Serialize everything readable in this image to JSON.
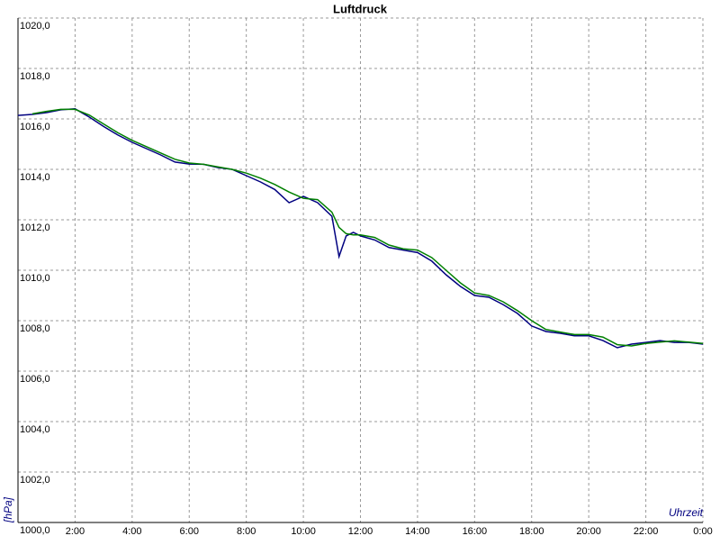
{
  "chart_data": {
    "type": "line",
    "title": "Luftdruck",
    "x_label": "Uhrzeit",
    "y_label": "[hPa]",
    "x": [
      0,
      0.5,
      1,
      1.5,
      2,
      2.5,
      3,
      3.5,
      4,
      4.5,
      5,
      5.5,
      6,
      6.5,
      7,
      7.5,
      8,
      8.5,
      9,
      9.5,
      10,
      10.5,
      11,
      11.25,
      11.5,
      11.75,
      12,
      12.5,
      13,
      13.5,
      14,
      14.5,
      15,
      15.5,
      16,
      16.5,
      17,
      17.5,
      18,
      18.5,
      19,
      19.5,
      20,
      20.5,
      21,
      21.5,
      22,
      22.5,
      23,
      23.5,
      24
    ],
    "series": [
      {
        "color": "#000080",
        "values": [
          1016.14,
          1016.18,
          1016.25,
          1016.36,
          1016.4,
          1016.07,
          1015.7,
          1015.36,
          1015.07,
          1014.82,
          1014.57,
          1014.29,
          1014.21,
          1014.2,
          1014.07,
          1014.0,
          1013.75,
          1013.5,
          1013.2,
          1012.68,
          1012.93,
          1012.68,
          1012.14,
          1010.54,
          1011.36,
          1011.5,
          1011.36,
          1011.2,
          1010.9,
          1010.8,
          1010.7,
          1010.36,
          1009.82,
          1009.36,
          1009.0,
          1008.93,
          1008.64,
          1008.29,
          1007.79,
          1007.57,
          1007.5,
          1007.4,
          1007.4,
          1007.21,
          1006.93,
          1007.07,
          1007.14,
          1007.21,
          1007.14,
          1007.14,
          1007.07
        ]
      },
      {
        "color": "#008000",
        "values": [
          null,
          1016.2,
          1016.3,
          1016.38,
          1016.38,
          1016.15,
          1015.8,
          1015.45,
          1015.15,
          1014.9,
          1014.65,
          1014.4,
          1014.25,
          1014.2,
          1014.1,
          1014.0,
          1013.85,
          1013.65,
          1013.4,
          1013.1,
          1012.85,
          1012.8,
          1012.3,
          1011.7,
          1011.45,
          1011.4,
          1011.4,
          1011.3,
          1011.0,
          1010.85,
          1010.8,
          1010.5,
          1010.0,
          1009.5,
          1009.1,
          1009.0,
          1008.75,
          1008.4,
          1008.0,
          1007.65,
          1007.55,
          1007.45,
          1007.45,
          1007.35,
          1007.05,
          1007.0,
          1007.1,
          1007.15,
          1007.2,
          1007.15,
          1007.1
        ]
      }
    ],
    "xlim": [
      0,
      24
    ],
    "xticks": [
      {
        "value": 2,
        "label": "2:00"
      },
      {
        "value": 4,
        "label": "4:00"
      },
      {
        "value": 6,
        "label": "6:00"
      },
      {
        "value": 8,
        "label": "8:00"
      },
      {
        "value": 10,
        "label": "10:00"
      },
      {
        "value": 12,
        "label": "12:00"
      },
      {
        "value": 14,
        "label": "14:00"
      },
      {
        "value": 16,
        "label": "16:00"
      },
      {
        "value": 18,
        "label": "18:00"
      },
      {
        "value": 20,
        "label": "20:00"
      },
      {
        "value": 22,
        "label": "22:00"
      },
      {
        "value": 24,
        "label": "0:00"
      }
    ],
    "ylim": [
      1000,
      1020
    ],
    "yticks": [
      {
        "value": 1000,
        "label": "1000,0"
      },
      {
        "value": 1002,
        "label": "1002,0"
      },
      {
        "value": 1004,
        "label": "1004,0"
      },
      {
        "value": 1006,
        "label": "1006,0"
      },
      {
        "value": 1008,
        "label": "1008,0"
      },
      {
        "value": 1010,
        "label": "1010,0"
      },
      {
        "value": 1012,
        "label": "1012,0"
      },
      {
        "value": 1014,
        "label": "1014,0"
      },
      {
        "value": 1016,
        "label": "1016,0"
      },
      {
        "value": 1018,
        "label": "1018,0"
      },
      {
        "value": 1020,
        "label": "1020,0"
      }
    ],
    "grid": true,
    "axis_label_color": "#000080"
  }
}
